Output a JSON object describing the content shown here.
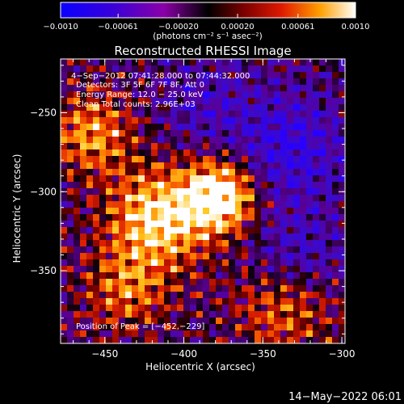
{
  "colorbar": {
    "min": -0.001,
    "max": 0.001,
    "tick_labels": [
      "−0.0010",
      "−0.00061",
      "−0.00020",
      "0.00020",
      "0.00061",
      "0.0010"
    ],
    "tick_values": [
      -0.001,
      -0.00061,
      -0.0002,
      0.0002,
      0.00061,
      0.001
    ],
    "units": "(photons cm⁻² s⁻¹ asec⁻²)",
    "colormap": "rainbow-to-hot"
  },
  "plot": {
    "title": "Reconstructed RHESSI Image",
    "annotations": [
      "4−Sep−2012 07:41:28.000 to 07:44:32.000",
      "Detectors: 3F 5F 6F 7F 8F, Att 0",
      "Energy Range: 12.0 − 25.0 keV",
      "Clean    Total counts: 2.96E+03"
    ],
    "peak_label": "Position of Peak = [−452,−229]",
    "timestamp": "14−May−2022 06:01"
  },
  "chart_data": {
    "type": "heatmap",
    "title": "Reconstructed RHESSI Image",
    "xlabel": "Heliocentric X (arcsec)",
    "ylabel": "Heliocentric Y (arcsec)",
    "xlim": [
      -478,
      -298
    ],
    "ylim": [
      -396,
      -216
    ],
    "x_ticks": [
      -450,
      -400,
      -350,
      -300
    ],
    "x_tick_labels": [
      "−450",
      "−400",
      "−350",
      "−300"
    ],
    "y_ticks": [
      -250,
      -300,
      -350
    ],
    "y_tick_labels": [
      "−250",
      "−300",
      "−350"
    ],
    "peak_position": [
      -452,
      -229
    ],
    "grid": false,
    "colors": {
      "axes": "#ffffff",
      "background": "#000000"
    }
  }
}
